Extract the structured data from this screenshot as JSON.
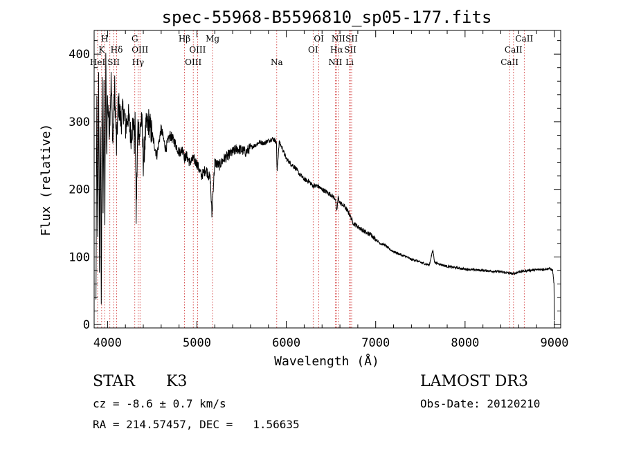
{
  "chart_data": {
    "type": "line",
    "title": "spec-55968-B5596810_sp05-177.fits",
    "xlabel": "Wavelength (Å)",
    "ylabel": "Flux (relative)",
    "xlim": [
      3850,
      9070
    ],
    "ylim": [
      -5,
      435
    ],
    "xticks": [
      4000,
      5000,
      6000,
      7000,
      8000,
      9000
    ],
    "yticks": [
      0,
      100,
      200,
      300,
      400
    ],
    "series": [
      {
        "name": "spectrum",
        "x": [
          3870,
          3880,
          3890,
          3900,
          3910,
          3920,
          3930,
          3940,
          3950,
          3960,
          3970,
          3980,
          3990,
          4000,
          4020,
          4040,
          4060,
          4080,
          4100,
          4120,
          4150,
          4180,
          4200,
          4230,
          4260,
          4290,
          4300,
          4310,
          4320,
          4340,
          4360,
          4380,
          4400,
          4430,
          4460,
          4500,
          4550,
          4600,
          4650,
          4700,
          4750,
          4800,
          4850,
          4861,
          4880,
          4920,
          4960,
          5000,
          5050,
          5100,
          5150,
          5168,
          5183,
          5200,
          5250,
          5300,
          5350,
          5400,
          5450,
          5500,
          5550,
          5600,
          5650,
          5700,
          5750,
          5800,
          5850,
          5890,
          5896,
          5920,
          5950,
          6000,
          6050,
          6100,
          6150,
          6200,
          6250,
          6300,
          6350,
          6400,
          6450,
          6500,
          6550,
          6563,
          6580,
          6600,
          6650,
          6700,
          6750,
          6800,
          6850,
          6900,
          6950,
          7000,
          7050,
          7100,
          7150,
          7200,
          7250,
          7300,
          7350,
          7400,
          7450,
          7500,
          7550,
          7600,
          7620,
          7640,
          7660,
          7700,
          7750,
          7800,
          7850,
          7900,
          7950,
          8000,
          8100,
          8200,
          8300,
          8400,
          8498,
          8542,
          8600,
          8662,
          8700,
          8800,
          8900,
          8950,
          8980,
          8995,
          9000
        ],
        "values": [
          30,
          330,
          120,
          360,
          90,
          310,
          40,
          370,
          180,
          340,
          150,
          400,
          250,
          330,
          290,
          360,
          270,
          350,
          260,
          330,
          300,
          320,
          290,
          310,
          280,
          300,
          270,
          300,
          160,
          295,
          280,
          310,
          240,
          290,
          300,
          280,
          250,
          290,
          260,
          280,
          270,
          255,
          260,
          245,
          250,
          240,
          245,
          238,
          220,
          230,
          215,
          160,
          205,
          240,
          235,
          245,
          250,
          255,
          260,
          258,
          255,
          262,
          265,
          270,
          268,
          272,
          275,
          270,
          225,
          270,
          262,
          245,
          238,
          232,
          222,
          215,
          212,
          205,
          205,
          200,
          196,
          192,
          186,
          165,
          188,
          180,
          175,
          165,
          150,
          145,
          140,
          135,
          133,
          126,
          120,
          118,
          112,
          108,
          105,
          102,
          100,
          96,
          95,
          92,
          90,
          88,
          100,
          110,
          92,
          90,
          88,
          86,
          85,
          84,
          83,
          82,
          81,
          80,
          79,
          78,
          76,
          75,
          78,
          79,
          80,
          81,
          82,
          83,
          80,
          60,
          5
        ]
      }
    ],
    "lines": [
      {
        "wl": 3889,
        "label": "HeI",
        "row": 3
      },
      {
        "wl": 3934,
        "label": "K",
        "row": 2
      },
      {
        "wl": 3968,
        "label": "H",
        "row": 1
      },
      {
        "wl": 4026,
        "label": "",
        "row": 0
      },
      {
        "wl": 4068,
        "label": "SII",
        "row": 3
      },
      {
        "wl": 4102,
        "label": "Hδ",
        "row": 2
      },
      {
        "wl": 4305,
        "label": "G",
        "row": 1
      },
      {
        "wl": 4341,
        "label": "Hγ",
        "row": 3
      },
      {
        "wl": 4363,
        "label": "OIII",
        "row": 2
      },
      {
        "wl": 4861,
        "label": "Hβ",
        "row": 1
      },
      {
        "wl": 4959,
        "label": "OIII",
        "row": 3
      },
      {
        "wl": 5007,
        "label": "OIII",
        "row": 2
      },
      {
        "wl": 5175,
        "label": "Mg",
        "row": 1
      },
      {
        "wl": 5893,
        "label": "Na",
        "row": 3
      },
      {
        "wl": 6300,
        "label": "OI",
        "row": 2
      },
      {
        "wl": 6364,
        "label": "OI",
        "row": 1
      },
      {
        "wl": 6548,
        "label": "NII",
        "row": 3
      },
      {
        "wl": 6563,
        "label": "Hα",
        "row": 2
      },
      {
        "wl": 6583,
        "label": "NII",
        "row": 1
      },
      {
        "wl": 6708,
        "label": "Li",
        "row": 3
      },
      {
        "wl": 6716,
        "label": "SII",
        "row": 2
      },
      {
        "wl": 6731,
        "label": "SII",
        "row": 1
      },
      {
        "wl": 8498,
        "label": "CaII",
        "row": 3
      },
      {
        "wl": 8542,
        "label": "CaII",
        "row": 2
      },
      {
        "wl": 8662,
        "label": "CaII",
        "row": 1
      }
    ]
  },
  "info": {
    "object_class": "STAR",
    "subclass": "K3",
    "survey": "LAMOST DR3",
    "cz": "cz = -8.6 ± 0.7 km/s",
    "obs_date": "Obs-Date: 20120210",
    "coords": "RA = 214.57457, DEC =   1.56635"
  },
  "colors": {
    "spectrum": "#000000",
    "line_marker": "#cc2222",
    "axes": "#000000"
  }
}
